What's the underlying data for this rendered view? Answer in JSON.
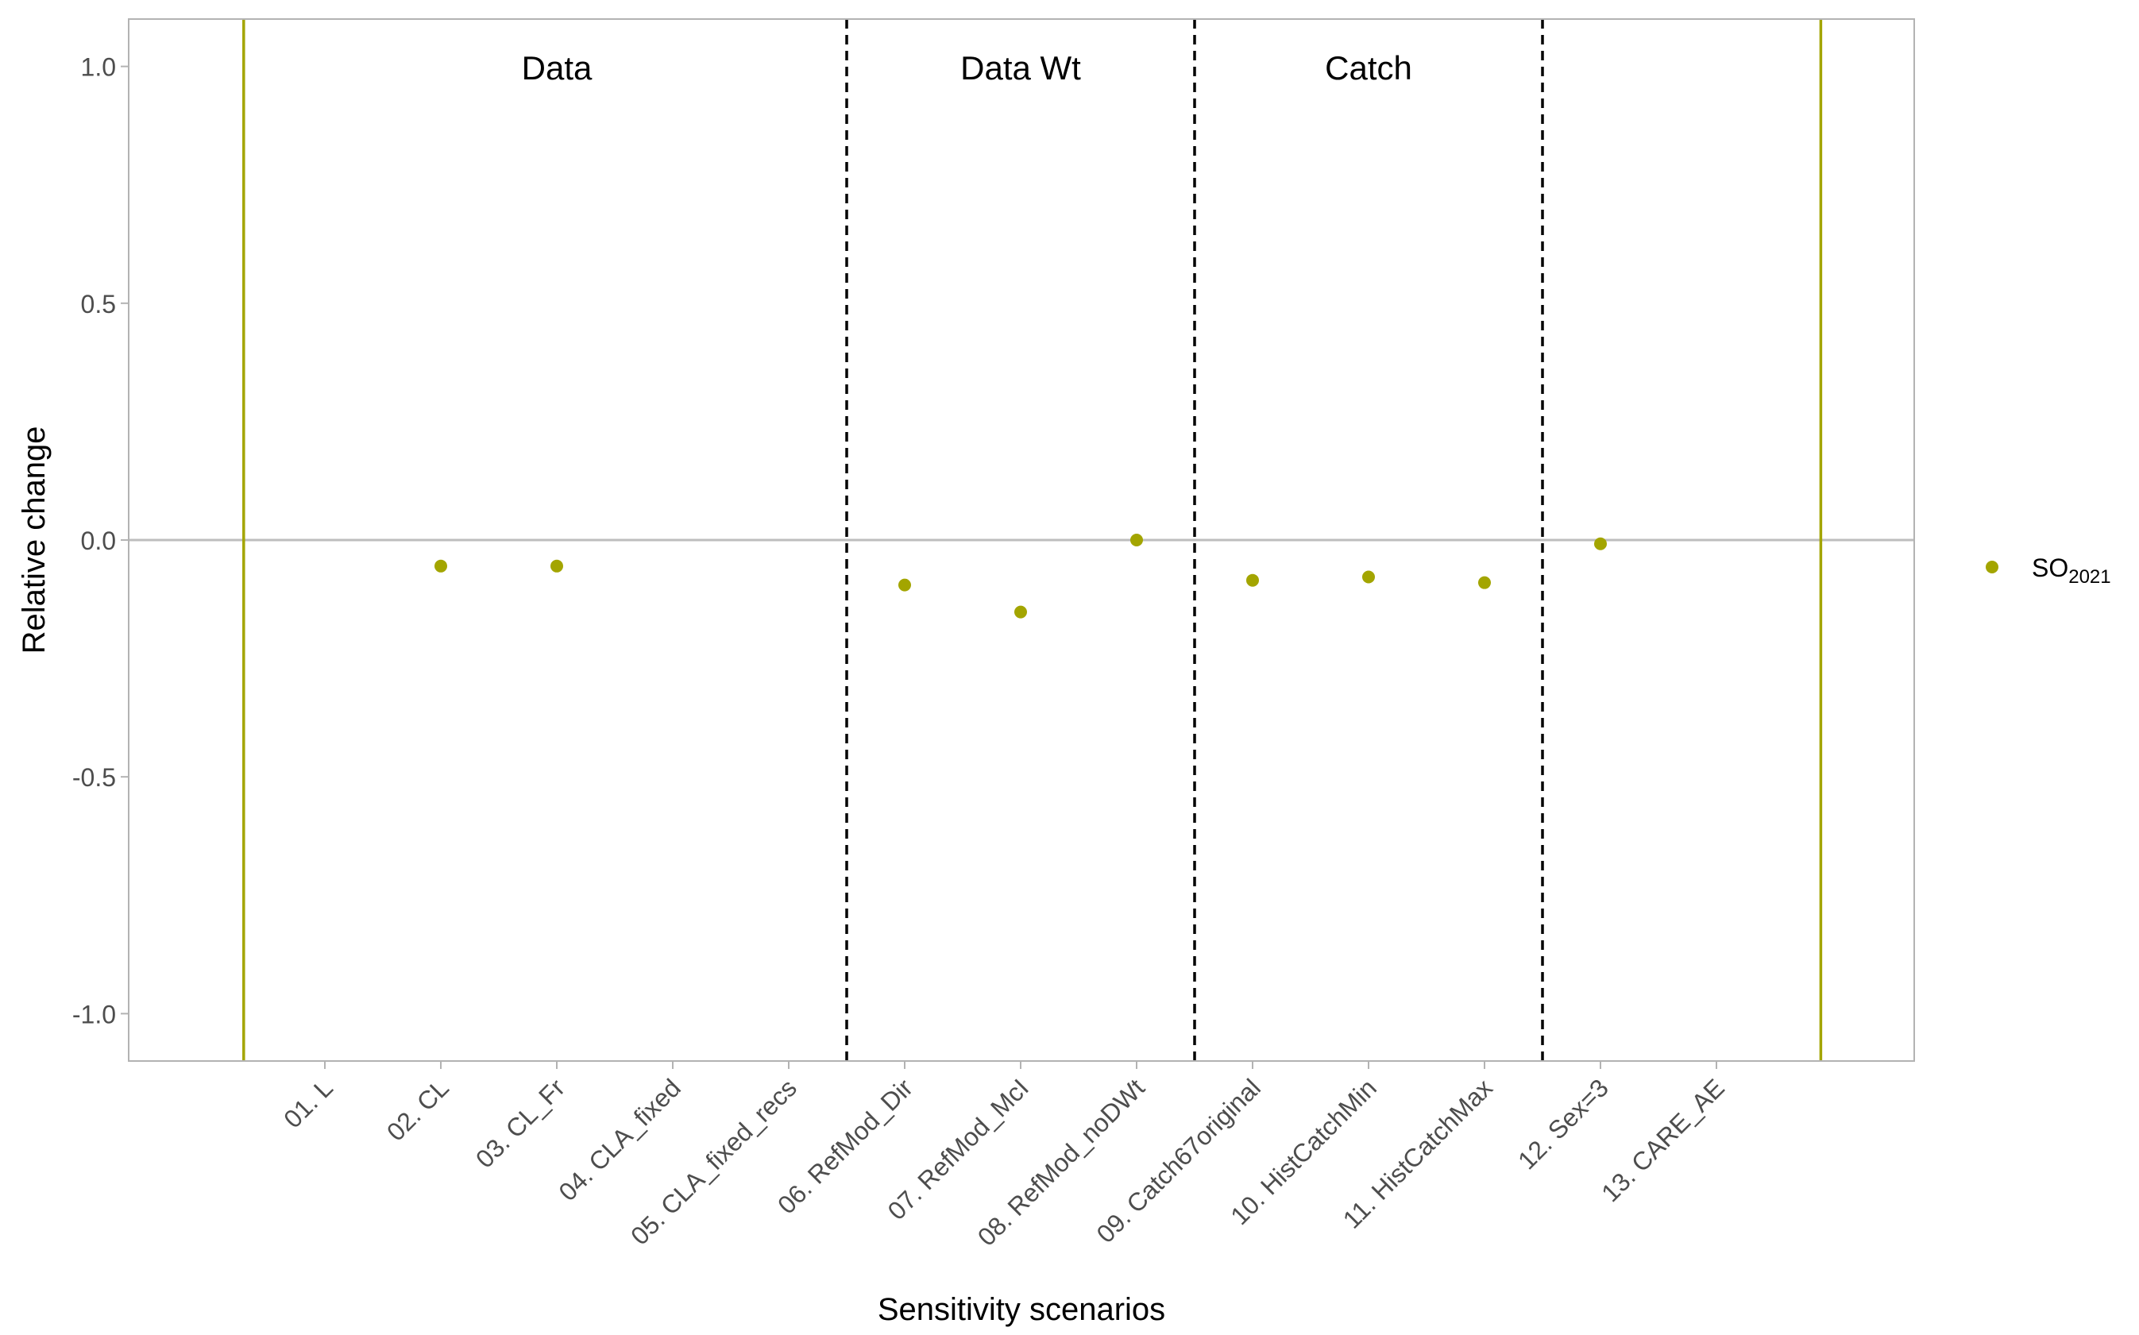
{
  "chart_data": {
    "type": "scatter",
    "xlabel": "Sensitivity scenarios",
    "ylabel": "Relative change",
    "categories": [
      "01. L",
      "02. CL",
      "03. CL_Fr",
      "04. CLA_fixed",
      "05. CLA_fixed_recs",
      "06. RefMod_Dir",
      "07. RefMod_McI",
      "08. RefMod_noDWt",
      "09. Catch67original",
      "10. HistCatchMin",
      "11. HistCatchMax",
      "12. Sex=3",
      "13. CARE_AE"
    ],
    "ylim": [
      -1.1,
      1.1
    ],
    "yticks": [
      -1.0,
      -0.5,
      0.0,
      0.5,
      1.0
    ],
    "ytick_labels": [
      "-1.0",
      "-0.5",
      "0.0",
      "0.5",
      "1.0"
    ],
    "grid": false,
    "legend_position": "right",
    "series": [
      {
        "name": "SO",
        "name_subscript": "2021",
        "color": "#a3a500",
        "points": [
          {
            "category": "02. CL",
            "value": -0.055
          },
          {
            "category": "03. CL_Fr",
            "value": -0.055
          },
          {
            "category": "06. RefMod_Dir",
            "value": -0.095
          },
          {
            "category": "07. RefMod_McI",
            "value": -0.152
          },
          {
            "category": "08. RefMod_noDWt",
            "value": 0.0
          },
          {
            "category": "09. Catch67original",
            "value": -0.085
          },
          {
            "category": "10. HistCatchMin",
            "value": -0.078
          },
          {
            "category": "11. HistCatchMax",
            "value": -0.09
          },
          {
            "category": "12. Sex=3",
            "value": -0.008
          }
        ]
      }
    ],
    "hline": {
      "value": 0.0,
      "color": "#bdbdbd"
    },
    "vlines_solid": {
      "color": "#a3a500",
      "positions": [
        0.3,
        13.9
      ]
    },
    "vlines_dashed": {
      "color": "#000000",
      "positions": [
        5.5,
        8.5,
        11.5
      ]
    },
    "group_labels": [
      {
        "text": "Data",
        "x": 3
      },
      {
        "text": "Data Wt",
        "x": 7
      },
      {
        "text": "Catch",
        "x": 10
      }
    ]
  }
}
